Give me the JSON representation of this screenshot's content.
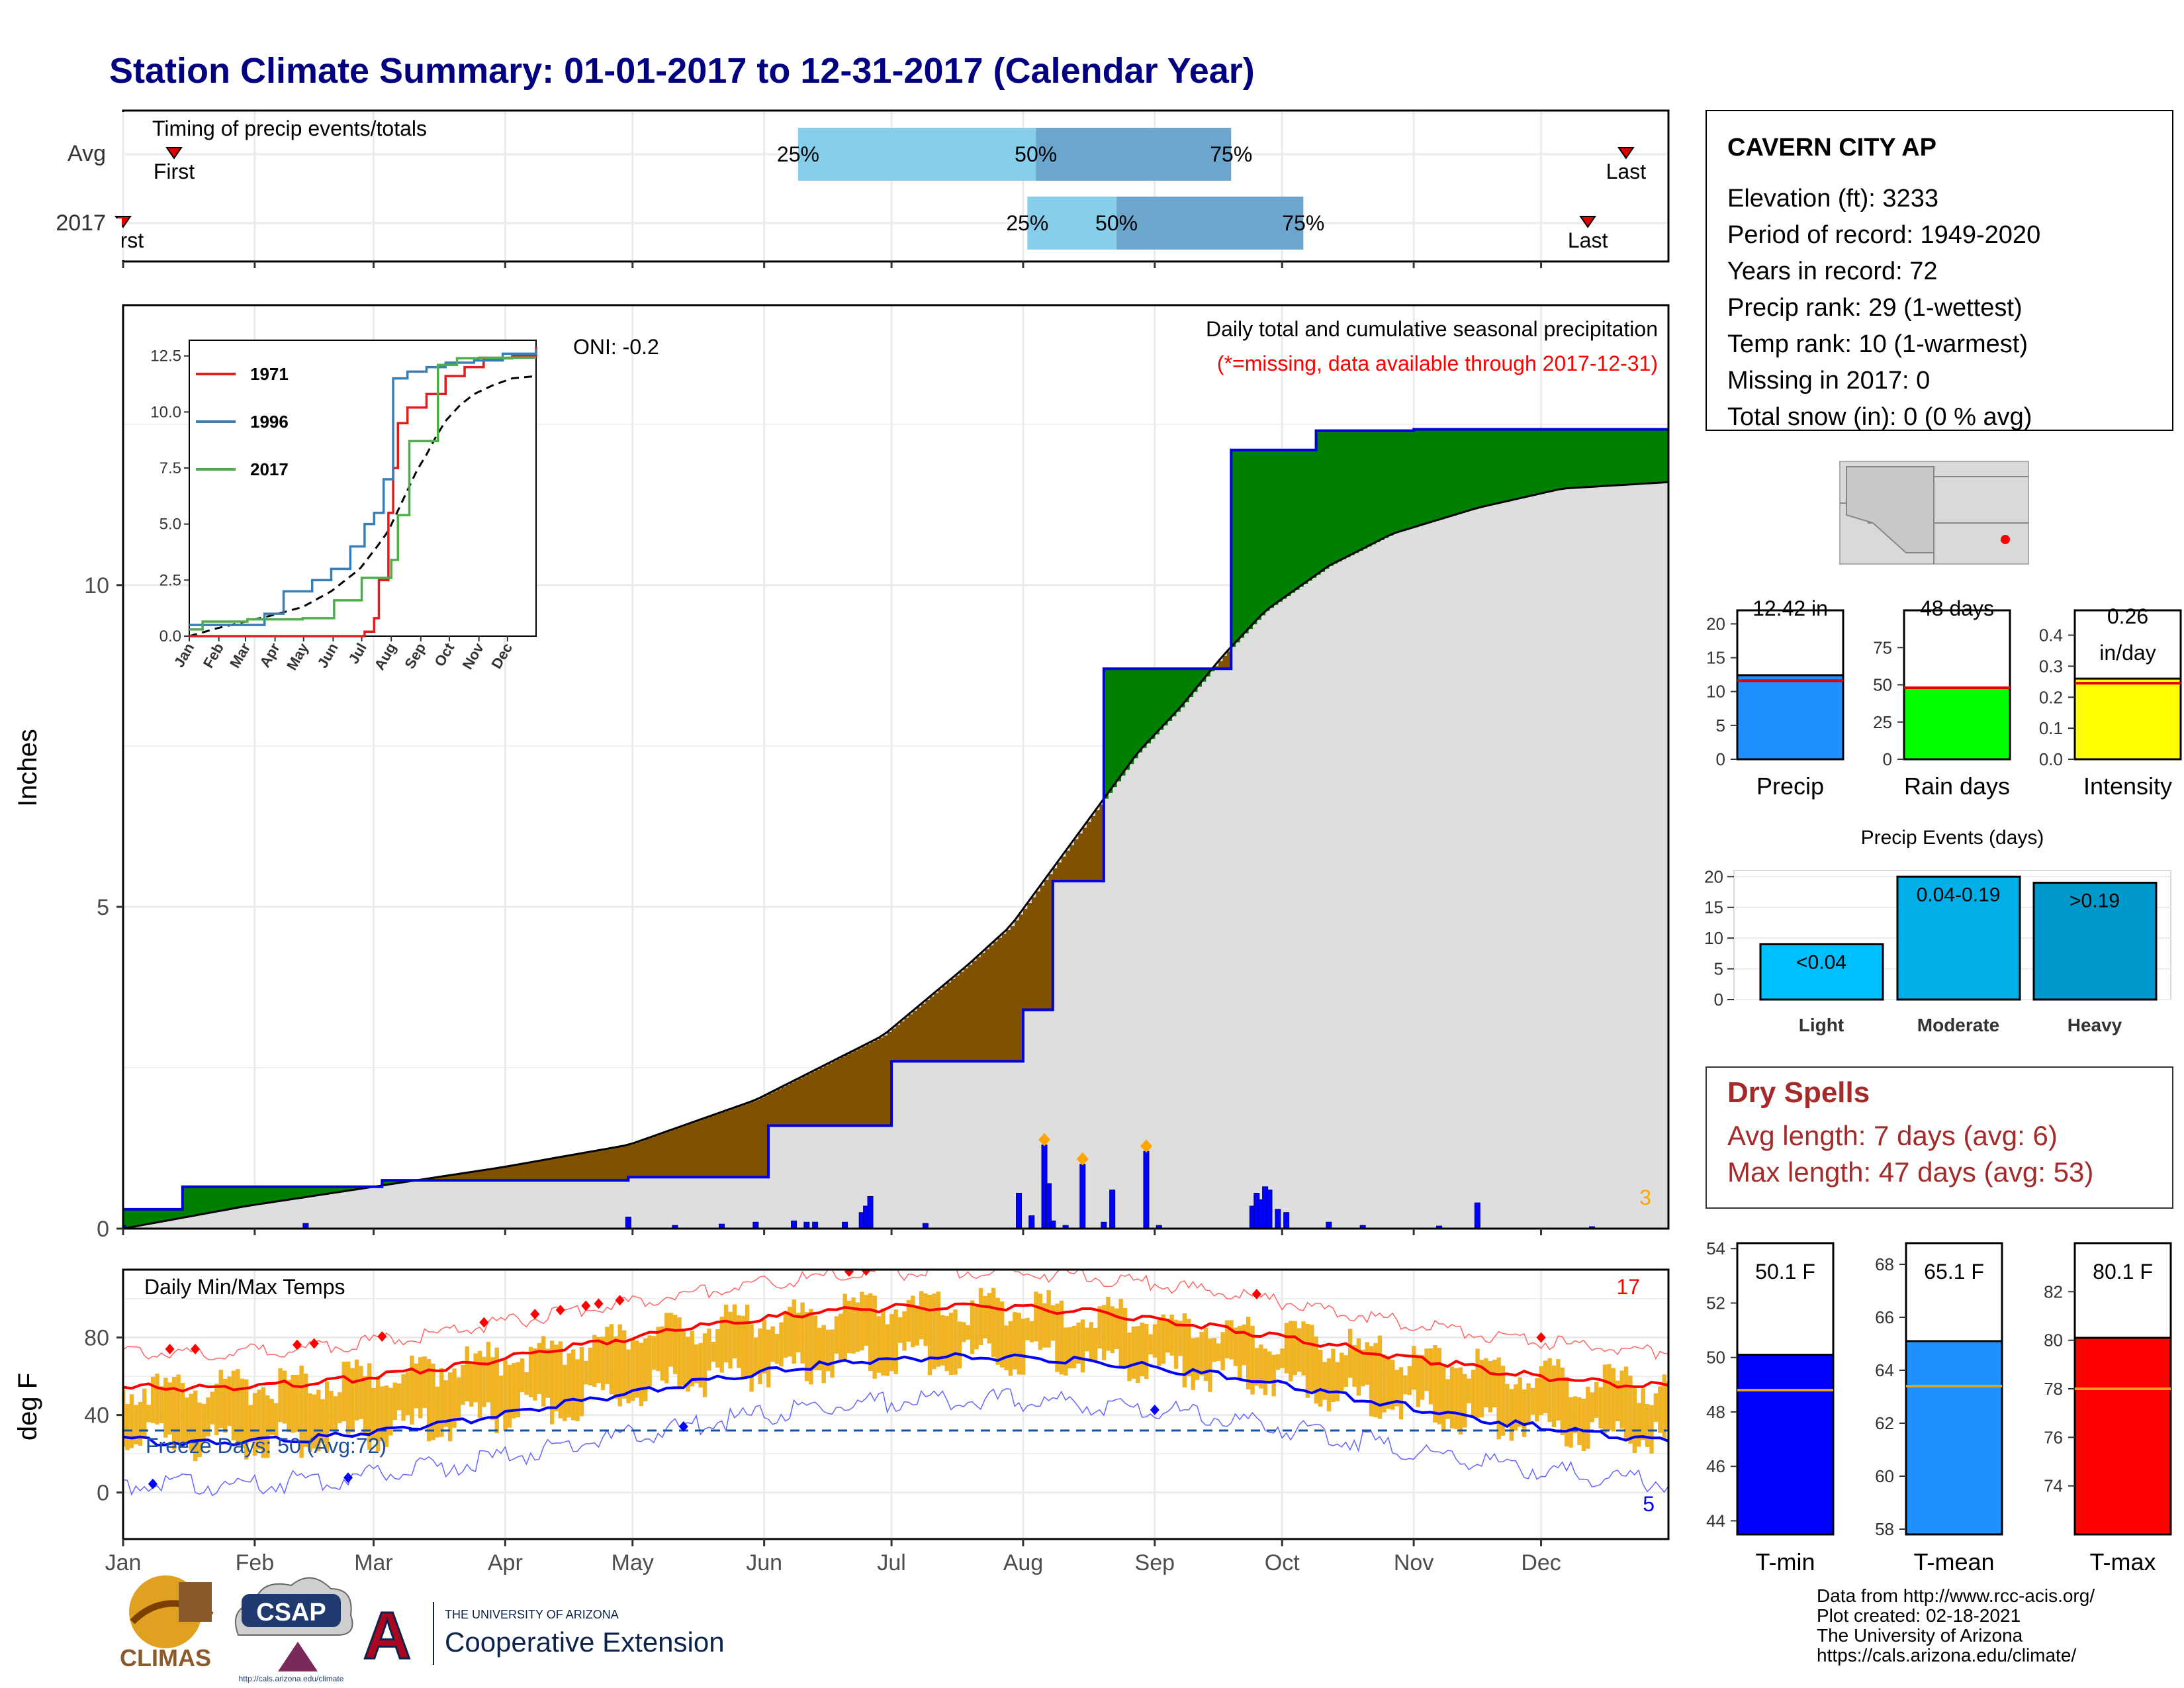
{
  "title": "Station Climate Summary: 01-01-2017 to 12-31-2017 (Calendar Year)",
  "months": [
    "Jan",
    "Feb",
    "Mar",
    "Apr",
    "May",
    "Jun",
    "Jul",
    "Aug",
    "Sep",
    "Oct",
    "Nov",
    "Dec"
  ],
  "timing": {
    "label": "Timing of precip events/totals",
    "rows": [
      "Avg",
      "2017"
    ],
    "avg": {
      "first_doy": 13,
      "last_doy": 355,
      "p25_doy": 160,
      "p50_doy": 216,
      "p75_doy": 262
    },
    "y2017": {
      "first_doy": 1,
      "last_doy": 346,
      "p25_doy": 214,
      "p50_doy": 235,
      "p75_doy": 279
    },
    "first_label": "First",
    "last_label": "Last",
    "pct_labels": [
      "25%",
      "50%",
      "75%"
    ]
  },
  "precip": {
    "ylabel": "Inches",
    "header": "Daily total and cumulative seasonal precipitation",
    "subheader": "(*=missing, data available through 2017-12-31)",
    "oni": "ONI: -0.2",
    "corner_count": "3",
    "yticks": [
      0,
      5,
      10
    ]
  },
  "inset": {
    "legend": [
      "1971",
      "1996",
      "2017"
    ],
    "yticks": [
      "0.0",
      "2.5",
      "5.0",
      "7.5",
      "10.0",
      "12.5"
    ],
    "xticks": [
      "Jan",
      "Feb",
      "Mar",
      "Apr",
      "May",
      "Jun",
      "Jul",
      "Aug",
      "Sep",
      "Oct",
      "Nov",
      "Dec"
    ]
  },
  "temps": {
    "label": "Daily Min/Max Temps",
    "ylabel": "deg F",
    "freeze": "Freeze Days: 50 (Avg:72)",
    "hot_count": "17",
    "cold_count": "5",
    "yticks": [
      0,
      40,
      80
    ]
  },
  "station": {
    "name": "CAVERN CITY AP",
    "lines": [
      "Elevation (ft): 3233",
      "Period of record: 1949-2020",
      "Years in record: 72",
      "Precip rank: 29 (1-wettest)",
      "Temp rank: 10 (1-warmest)",
      "Missing in 2017: 0",
      "Total snow (in): 0 (0 % avg)"
    ]
  },
  "summary_bars": [
    {
      "name": "Precip",
      "value": 12.42,
      "avg": 11.6,
      "max": 22,
      "ticks": [
        0,
        5,
        10,
        15,
        20
      ],
      "label": "12.42 in",
      "color": "#1e90ff"
    },
    {
      "name": "Rain days",
      "value": 48,
      "avg": 48,
      "max": 100,
      "ticks": [
        0,
        25,
        50,
        75
      ],
      "label": "48 days",
      "color": "#00ff00"
    },
    {
      "name": "Intensity",
      "value": 0.26,
      "avg": 0.245,
      "max": 0.48,
      "ticks": [
        "0.0",
        "0.1",
        "0.2",
        "0.3",
        "0.4"
      ],
      "label": "0.26 in/day",
      "label_lines": [
        "0.26",
        "in/day"
      ],
      "color": "#ffff00"
    }
  ],
  "events": {
    "title": "Precip Events (days)",
    "categories": [
      "Light",
      "Moderate",
      "Heavy"
    ],
    "labels": [
      "<0.04",
      "0.04-0.19",
      ">0.19"
    ],
    "values": [
      9,
      20,
      19
    ],
    "colors": [
      "#00bfff",
      "#00aee8",
      "#0099cc"
    ],
    "yticks": [
      0,
      5,
      10,
      15,
      20
    ]
  },
  "dry_spells": {
    "title": "Dry Spells",
    "lines": [
      "Avg length: 7 days (avg: 6)",
      "Max length: 47 days (avg: 53)"
    ]
  },
  "temp_bars": [
    {
      "name": "T-min",
      "label": "50.1 F",
      "value": 50.1,
      "avg": 48.8,
      "ymin": 43.5,
      "ymax": 54.2,
      "ticks": [
        44,
        46,
        48,
        50,
        52,
        54
      ],
      "color": "#0000ff"
    },
    {
      "name": "T-mean",
      "label": "65.1 F",
      "value": 65.1,
      "avg": 63.4,
      "ymin": 57.8,
      "ymax": 68.8,
      "ticks": [
        58,
        60,
        62,
        64,
        66,
        68
      ],
      "color": "#1e90ff"
    },
    {
      "name": "T-max",
      "label": "80.1 F",
      "value": 80.1,
      "avg": 78.0,
      "ymin": 72.0,
      "ymax": 84.0,
      "ticks": [
        74,
        76,
        78,
        80,
        82
      ],
      "color": "#ff0000"
    }
  ],
  "footer": [
    "Data from http://www.rcc-acis.org/",
    "Plot created: 02-18-2021",
    "The University of Arizona",
    "https://cals.arizona.edu/climate/"
  ],
  "logos": {
    "climas": "CLIMAS",
    "csap": "CSAP",
    "csap_url": "http://cals.arizona.edu/climate",
    "ua_small": "THE UNIVERSITY OF ARIZONA",
    "ua_big": "Cooperative Extension"
  },
  "colors": {
    "title": "#000080",
    "green": "#008000",
    "brown": "#7f5100",
    "blue": "#0000ff",
    "red": "#ff0000",
    "orange": "#ffa500",
    "gold": "#efb324",
    "dry": "#a52a2a"
  },
  "chart_data": {
    "type": "area",
    "title": "Daily total and cumulative seasonal precipitation",
    "xlabel": "",
    "ylabel": "Inches",
    "ylim": [
      0,
      13
    ],
    "series": [
      {
        "name": "observed cumulative",
        "x_doy": [
          1,
          15,
          62,
          120,
          153,
          182,
          213,
          220,
          232,
          244,
          262,
          268,
          282,
          305,
          335,
          365
        ],
        "values": [
          0.3,
          0.65,
          0.75,
          0.8,
          1.6,
          2.6,
          3.4,
          5.4,
          8.7,
          8.7,
          12.1,
          12.1,
          12.4,
          12.42,
          12.42,
          12.42
        ]
      },
      {
        "name": "average cumulative",
        "x_doy": [
          1,
          30,
          60,
          90,
          120,
          150,
          180,
          200,
          210,
          220,
          230,
          240,
          250,
          260,
          270,
          285,
          300,
          320,
          340,
          365
        ],
        "values": [
          0,
          0.35,
          0.65,
          0.95,
          1.3,
          2.0,
          3.0,
          4.1,
          4.7,
          5.6,
          6.5,
          7.4,
          8.1,
          8.9,
          9.6,
          10.3,
          10.8,
          11.2,
          11.5,
          11.6
        ]
      },
      {
        "name": "daily precip",
        "x_doy": [
          1,
          44,
          120,
          131,
          142,
          150,
          159,
          162,
          164,
          171,
          175,
          176,
          177,
          190,
          212,
          215,
          218,
          219,
          220,
          223,
          227,
          232,
          234,
          242,
          245,
          267,
          268,
          269,
          270,
          271,
          273,
          275,
          285,
          293,
          311,
          320,
          347
        ],
        "values": [
          0.05,
          0.08,
          0.18,
          0.05,
          0.07,
          0.1,
          0.12,
          0.1,
          0.1,
          0.1,
          0.25,
          0.35,
          0.5,
          0.08,
          0.55,
          0.2,
          1.3,
          0.7,
          0.12,
          0.05,
          1.0,
          0.1,
          0.6,
          1.2,
          0.05,
          0.35,
          0.55,
          0.45,
          0.65,
          0.6,
          0.3,
          0.25,
          0.1,
          0.05,
          0.04,
          0.4,
          0.03
        ]
      }
    ]
  }
}
